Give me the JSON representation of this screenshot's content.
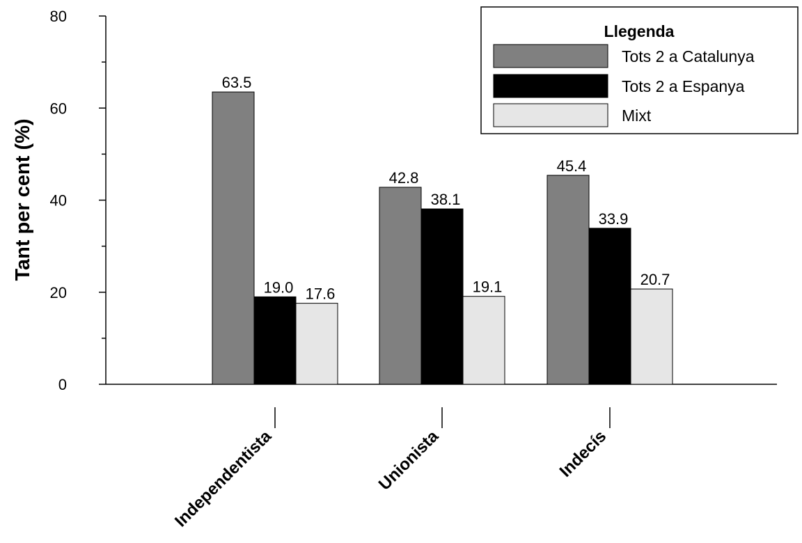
{
  "chart_data": {
    "type": "bar",
    "ylabel": "Tant per cent (%)",
    "ylim": [
      0,
      80
    ],
    "yticks": [
      0,
      20,
      40,
      60,
      80
    ],
    "categories": [
      "Independentista",
      "Unionista",
      "Indecís"
    ],
    "legend": {
      "title": "Llegenda",
      "placement": "top-right"
    },
    "grid": false,
    "series": [
      {
        "name": "Tots 2 a Catalunya",
        "color": "#808080",
        "values": [
          63.5,
          42.8,
          45.4
        ],
        "labels": [
          "63.5",
          "42.8",
          "45.4"
        ]
      },
      {
        "name": "Tots 2 a Espanya",
        "color": "#000000",
        "values": [
          19.0,
          38.1,
          33.9
        ],
        "labels": [
          "19.0",
          "38.1",
          "33.9"
        ]
      },
      {
        "name": "Mixt",
        "color": "#e6e6e6",
        "values": [
          17.6,
          19.1,
          20.7
        ],
        "labels": [
          "17.6",
          "19.1",
          "20.7"
        ]
      }
    ]
  }
}
